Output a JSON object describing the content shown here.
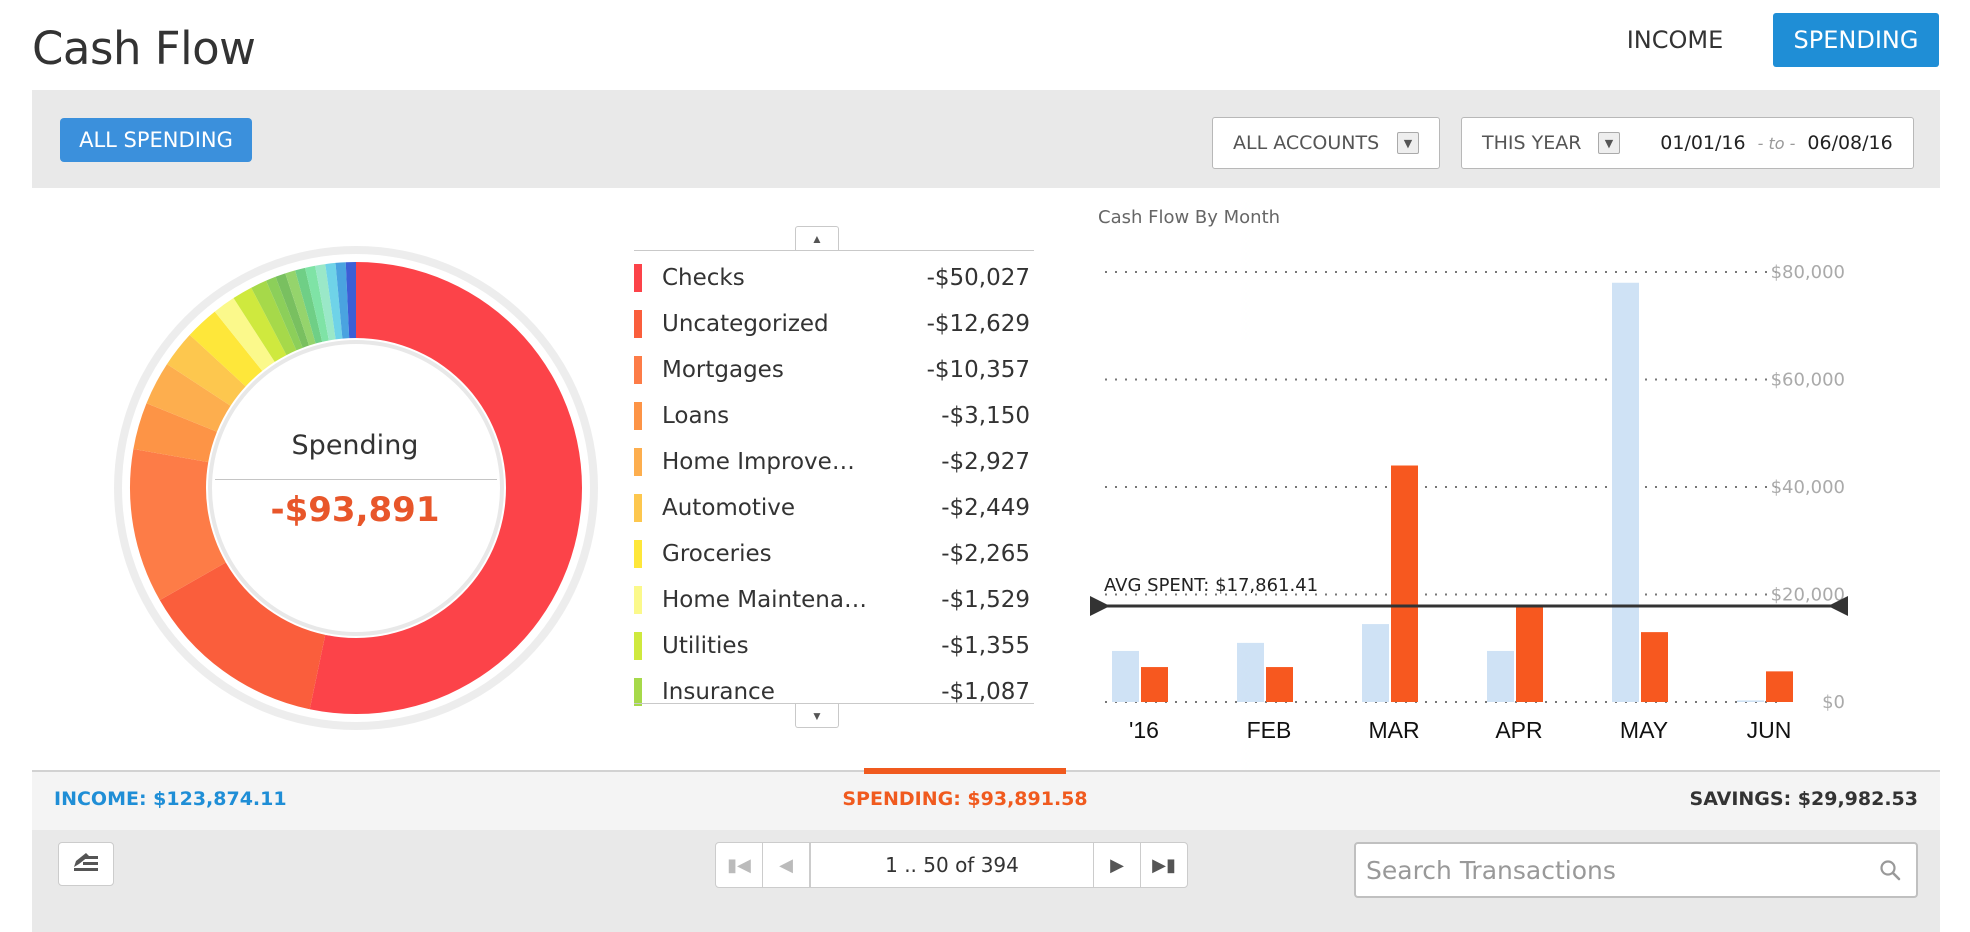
{
  "header": {
    "title": "Cash Flow",
    "tabs": [
      {
        "label": "INCOME",
        "active": false
      },
      {
        "label": "SPENDING",
        "active": true
      }
    ]
  },
  "filters": {
    "category_button": "ALL SPENDING",
    "accounts_select": "ALL ACCOUNTS",
    "period_select": "THIS YEAR",
    "date_from": "01/01/16",
    "date_to_separator": "- to -",
    "date_to": "06/08/16"
  },
  "donut": {
    "label": "Spending",
    "total": "-$93,891"
  },
  "legend": {
    "items": [
      {
        "name": "Checks",
        "amount": "-$50,027",
        "value": 50027,
        "color": "#fc4349"
      },
      {
        "name": "Uncategorized",
        "amount": "-$12,629",
        "value": 12629,
        "color": "#fa5e3c"
      },
      {
        "name": "Mortgages",
        "amount": "-$10,357",
        "value": 10357,
        "color": "#fd7c47"
      },
      {
        "name": "Loans",
        "amount": "-$3,150",
        "value": 3150,
        "color": "#fd9446"
      },
      {
        "name": "Home Improvem…",
        "amount": "-$2,927",
        "value": 2927,
        "color": "#fdae4e"
      },
      {
        "name": "Automotive",
        "amount": "-$2,449",
        "value": 2449,
        "color": "#fdc74e"
      },
      {
        "name": "Groceries",
        "amount": "-$2,265",
        "value": 2265,
        "color": "#fee73a"
      },
      {
        "name": "Home Maintena…",
        "amount": "-$1,529",
        "value": 1529,
        "color": "#fbf98b"
      },
      {
        "name": "Utilities",
        "amount": "-$1,355",
        "value": 1355,
        "color": "#cfe93e"
      },
      {
        "name": "Insurance",
        "amount": "-$1,087",
        "value": 1087,
        "color": "#a6d94a"
      }
    ],
    "other_value": 6116,
    "other_colors": [
      "#8ccf5a",
      "#79c060",
      "#95d46c",
      "#6fcf86",
      "#7fe3a6",
      "#9ae8c8",
      "#6fd3e8",
      "#4aa3e0",
      "#3c5fd6"
    ]
  },
  "chart_data": {
    "type": "bar",
    "title": "Cash Flow By Month",
    "categories": [
      "'16",
      "FEB",
      "MAR",
      "APR",
      "MAY",
      "JUN"
    ],
    "series": [
      {
        "values": [
          9500,
          11000,
          14500,
          9500,
          78000,
          300
        ],
        "color": "#cfe2f5"
      },
      {
        "values": [
          6500,
          6500,
          44000,
          17800,
          13000,
          5700
        ],
        "color": "#f7581f"
      }
    ],
    "ylim": [
      0,
      80000
    ],
    "yticks": [
      0,
      20000,
      40000,
      60000,
      80000
    ],
    "ytick_labels": [
      "$0",
      "$20,000",
      "$40,000",
      "$60,000",
      "$80,000"
    ],
    "avg_line": {
      "label": "AVG SPENT: $17,861.41",
      "value": 17861.41,
      "color": "#333333"
    },
    "grid": true
  },
  "summary": {
    "income": "INCOME: $123,874.11",
    "spending": "SPENDING: $93,891.58",
    "savings": "SAVINGS: $29,982.53"
  },
  "pager": {
    "info": "1 .. 50 of 394"
  },
  "search": {
    "placeholder": "Search Transactions"
  }
}
